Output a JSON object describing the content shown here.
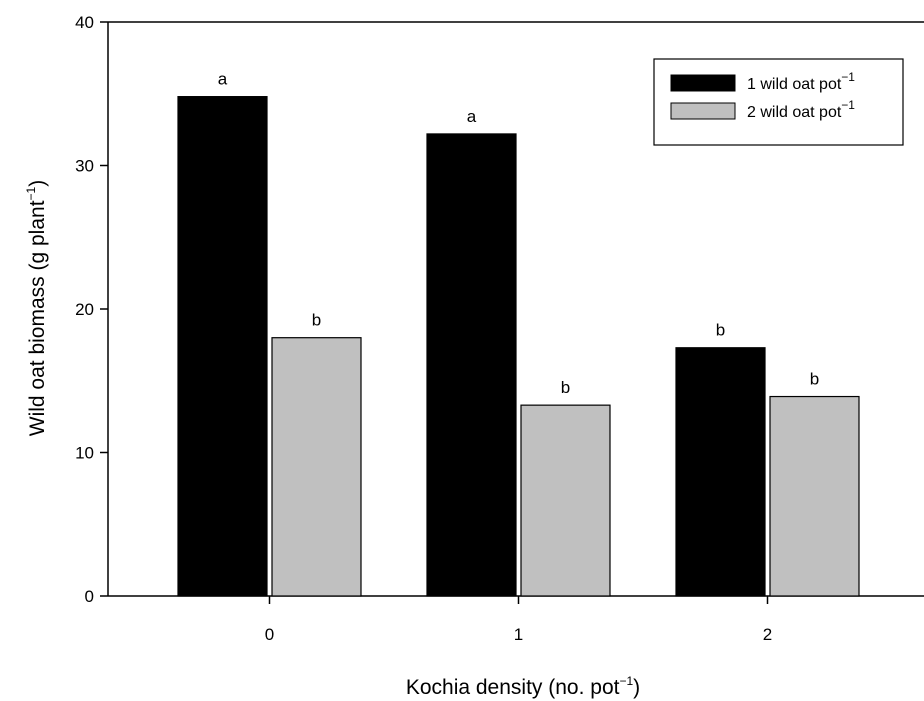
{
  "chart_data": {
    "type": "bar",
    "xlabel": "Kochia density (no. pot",
    "xlabel_sup": "−1",
    "xlabel_end": ")",
    "ylabel": "Wild oat biomass (g plant",
    "ylabel_sup": "−1",
    "ylabel_end": ")",
    "categories": [
      "0",
      "1",
      "2"
    ],
    "ylim": [
      0,
      40
    ],
    "yticks": [
      0,
      10,
      20,
      30,
      40
    ],
    "grid": false,
    "legend_position": "top-right",
    "series": [
      {
        "name": "1 wild oat pot",
        "name_sup": "−1",
        "color": "#000000",
        "values": [
          34.8,
          32.2,
          17.3
        ],
        "labels": [
          "a",
          "a",
          "b"
        ]
      },
      {
        "name": "2 wild oat pot",
        "name_sup": "−1",
        "color": "#c0c0c0",
        "values": [
          18.0,
          13.3,
          13.9
        ],
        "labels": [
          "b",
          "b",
          "b"
        ]
      }
    ]
  }
}
